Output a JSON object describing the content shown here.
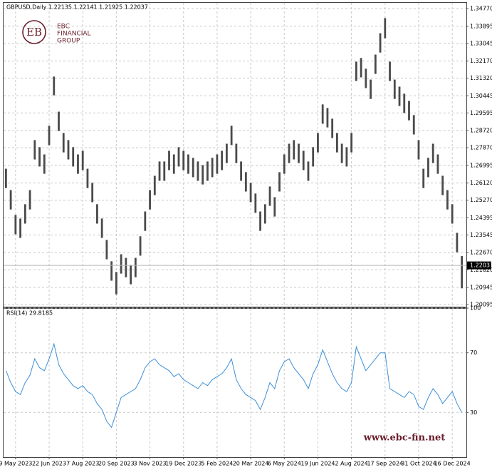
{
  "chart_data": [
    {
      "type": "hlbar",
      "title": "GBPUSD,Daily  1.22135 1.22141 1.21925 1.22037",
      "color": "#4a4a4a",
      "grid": true,
      "ylim": [
        1.1999,
        1.3509
      ],
      "yticks": [
        {
          "value": 1.3477,
          "label": "1.34770"
        },
        1.33895,
        1.33045,
        {
          "value": 1.3217,
          "label": "1.32170"
        },
        {
          "value": 1.3132,
          "label": "1.31320"
        },
        1.30445,
        1.29595,
        {
          "value": 1.2872,
          "label": "1.28720"
        },
        {
          "value": 1.2787,
          "label": "1.27870"
        },
        1.26995,
        {
          "value": 1.2612,
          "label": "1.26120"
        },
        {
          "value": 1.2527,
          "label": "1.25270"
        },
        1.24395,
        1.23545,
        {
          "value": 1.2267,
          "label": "1.22670"
        },
        {
          "value": 1.2182,
          "label": "1.21820"
        },
        1.20945,
        1.20095
      ],
      "last_price": 1.22037,
      "high": [
        1.2683,
        1.2577,
        1.2454,
        1.2436,
        1.2507,
        1.2577,
        1.2825,
        1.279,
        1.2754,
        1.2896,
        1.314,
        1.2966,
        1.286,
        1.2825,
        1.279,
        1.2754,
        1.2772,
        1.2683,
        1.2613,
        1.2507,
        1.2436,
        1.233,
        1.2224,
        1.2171,
        1.2259,
        1.2241,
        1.2206,
        1.2241,
        1.2348,
        1.2471,
        1.2577,
        1.2648,
        1.2719,
        1.2719,
        1.2772,
        1.2754,
        1.279,
        1.2772,
        1.2754,
        1.2737,
        1.2719,
        1.2701,
        1.2719,
        1.2737,
        1.2754,
        1.2772,
        1.2807,
        1.2896,
        1.2807,
        1.2719,
        1.2666,
        1.2613,
        1.256,
        1.2471,
        1.2507,
        1.2595,
        1.2542,
        1.2666,
        1.2754,
        1.2807,
        1.2825,
        1.2807,
        1.2772,
        1.2719,
        1.279,
        1.286,
        1.3002,
        1.2984,
        1.2931,
        1.286,
        1.2807,
        1.279,
        1.286,
        1.3214,
        1.3232,
        1.3179,
        1.3125,
        1.3249,
        1.3355,
        1.343,
        1.3214,
        1.3125,
        1.309,
        1.3055,
        1.3019,
        1.2949,
        1.2825,
        1.2683,
        1.2737,
        1.2807,
        1.2754,
        1.2648,
        1.2577,
        1.2507,
        1.2365,
        1.225
      ],
      "low": [
        1.2587,
        1.2481,
        1.2358,
        1.234,
        1.2411,
        1.2481,
        1.2729,
        1.2694,
        1.2658,
        1.28,
        1.3047,
        1.287,
        1.2764,
        1.2729,
        1.2694,
        1.2658,
        1.2676,
        1.2587,
        1.2517,
        1.2411,
        1.234,
        1.2234,
        1.2128,
        1.206,
        1.2163,
        1.2145,
        1.211,
        1.2145,
        1.2252,
        1.2375,
        1.2481,
        1.2552,
        1.2623,
        1.2623,
        1.2676,
        1.2658,
        1.2694,
        1.2676,
        1.2658,
        1.2641,
        1.2623,
        1.2605,
        1.2623,
        1.2641,
        1.2658,
        1.2676,
        1.2711,
        1.28,
        1.2711,
        1.2623,
        1.257,
        1.2517,
        1.2464,
        1.2375,
        1.2411,
        1.2499,
        1.2446,
        1.257,
        1.2658,
        1.2711,
        1.2729,
        1.2711,
        1.2676,
        1.2623,
        1.2694,
        1.2764,
        1.2906,
        1.2888,
        1.2835,
        1.2764,
        1.2711,
        1.2694,
        1.2764,
        1.3118,
        1.3136,
        1.3083,
        1.3029,
        1.3153,
        1.3259,
        1.333,
        1.3118,
        1.3029,
        1.2994,
        1.2959,
        1.2923,
        1.2853,
        1.2729,
        1.2587,
        1.2641,
        1.2711,
        1.2658,
        1.2552,
        1.2481,
        1.2411,
        1.2269,
        1.209
      ]
    },
    {
      "type": "line",
      "title": "RSI(14) 29.8185",
      "color": "#3d8fd8",
      "grid": true,
      "ylim": [
        0,
        100
      ],
      "yticks": [
        100,
        70,
        30
      ],
      "categories": [
        null,
        null,
        "9 May 2023",
        null,
        null,
        null,
        null,
        null,
        null,
        "22 Jun 2023",
        null,
        null,
        null,
        null,
        null,
        null,
        "7 Aug 2023",
        null,
        null,
        null,
        null,
        null,
        null,
        "20 Sep 2023",
        null,
        null,
        null,
        null,
        null,
        null,
        "3 Nov 2023",
        null,
        null,
        null,
        null,
        null,
        null,
        "19 Dec 2023",
        null,
        null,
        null,
        null,
        null,
        null,
        "5 Feb 2024",
        null,
        null,
        null,
        null,
        null,
        null,
        "20 Mar 2024",
        null,
        null,
        null,
        null,
        null,
        null,
        "6 May 2024",
        null,
        null,
        null,
        null,
        null,
        null,
        "19 Jun 2024",
        null,
        null,
        null,
        null,
        null,
        null,
        "2 Aug 2024",
        null,
        null,
        null,
        null,
        null,
        null,
        "17 Sep 2024",
        null,
        null,
        null,
        null,
        null,
        null,
        "31 Oct 2024",
        null,
        null,
        null,
        null,
        null,
        null,
        "16 Dec 2024",
        null,
        null
      ],
      "values": [
        58,
        50,
        44,
        42,
        50,
        55,
        66,
        60,
        58,
        66,
        76,
        62,
        56,
        52,
        48,
        46,
        48,
        44,
        42,
        36,
        32,
        24,
        20,
        30,
        40,
        42,
        44,
        46,
        52,
        60,
        64,
        66,
        62,
        60,
        58,
        54,
        56,
        52,
        50,
        48,
        46,
        50,
        48,
        52,
        54,
        56,
        60,
        66,
        52,
        46,
        42,
        40,
        38,
        32,
        40,
        50,
        46,
        58,
        64,
        66,
        60,
        56,
        52,
        46,
        56,
        62,
        72,
        64,
        56,
        50,
        46,
        44,
        50,
        74,
        66,
        58,
        62,
        66,
        70,
        70,
        46,
        44,
        42,
        40,
        44,
        42,
        34,
        32,
        40,
        46,
        42,
        36,
        40,
        44,
        36,
        30
      ]
    }
  ],
  "logo": {
    "mark": "EB",
    "line1": "EBC",
    "line2": "FINANCIAL",
    "line3": "GROUP"
  },
  "watermark": "www.ebc-fin.net"
}
